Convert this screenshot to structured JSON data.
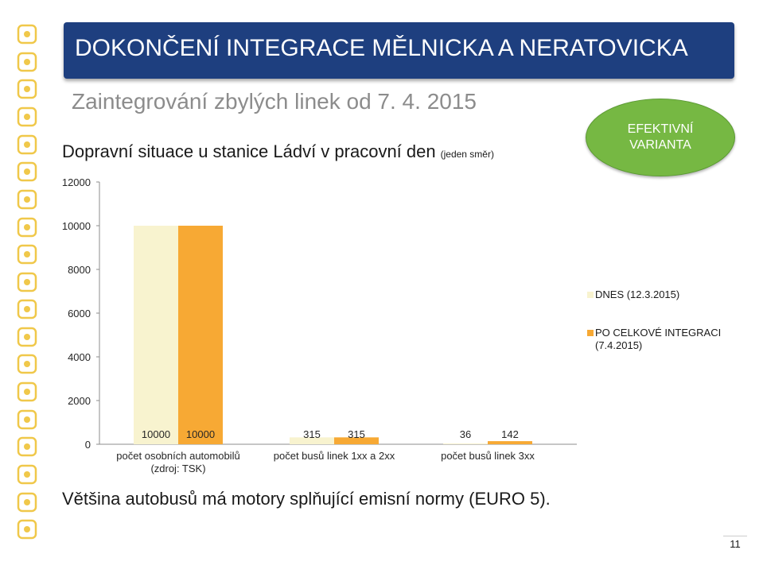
{
  "header": {
    "title": "DOKONČENÍ INTEGRACE MĚLNICKA A NERATOVICKA",
    "subtitle": "Zaintegrování zbylých linek od 7. 4. 2015"
  },
  "badge": {
    "label": "EFEKTIVNÍ VARIANTA",
    "color": "#76b843"
  },
  "sidebar_icons": [
    "pid-logo-icon",
    "tram-pointer-icon",
    "tram-icon",
    "bus-stop-icon",
    "metro-icon",
    "train-icon",
    "anchor-icon",
    "ferry-icon",
    "ticket-icon",
    "timetable-icon",
    "mobile-icon",
    "wheelchair-icon",
    "family-icon",
    "escalator-icon",
    "airplane-icon",
    "stroller-icon",
    "bicycle-icon",
    "dog-icon",
    "footsteps-icon"
  ],
  "footer": {
    "note": "Většina autobusů má motory splňující emisní normy (EURO 5).",
    "page_number": "11"
  },
  "chart_data": {
    "type": "bar",
    "title": "Dopravní situace u stanice Ládví v pracovní den",
    "title_note": "(jeden směr)",
    "categories": [
      "počet osobních automobilů (zdroj: TSK)",
      "počet busů linek 1xx a 2xx",
      "počet busů linek 3xx"
    ],
    "category_lines": [
      [
        "počet osobních automobilů",
        "(zdroj: TSK)"
      ],
      [
        "počet busů linek 1xx a 2xx"
      ],
      [
        "počet busů linek 3xx"
      ]
    ],
    "series": [
      {
        "name": "DNES (12.3.2015)",
        "values": [
          10000,
          315,
          36
        ],
        "color": "#f8f3cf"
      },
      {
        "name": "PO CELKOVÉ INTEGRACI (7.4.2015)",
        "legend_lines": [
          "PO CELKOVÉ INTEGRACI",
          "(7.4.2015)"
        ],
        "values": [
          10000,
          315,
          142
        ],
        "color": "#f7a934"
      }
    ],
    "yticks": [
      0,
      2000,
      4000,
      6000,
      8000,
      10000,
      12000
    ],
    "ylim": [
      0,
      12000
    ],
    "data_labels": true,
    "grid": false,
    "legend_position": "right"
  }
}
